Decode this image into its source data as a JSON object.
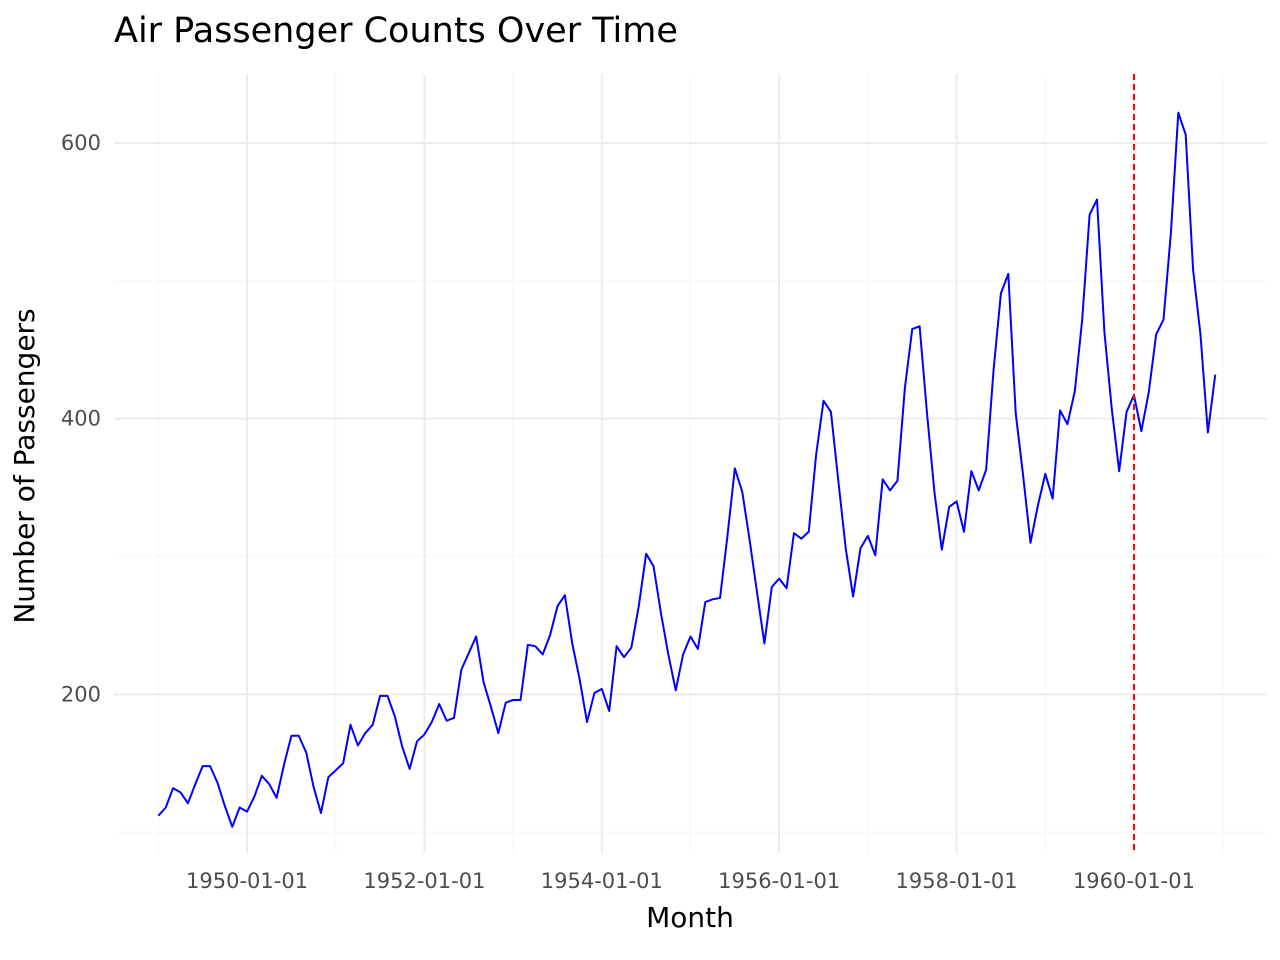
{
  "chart_data": {
    "type": "line",
    "title": "Air Passenger Counts Over Time",
    "xlabel": "Month",
    "ylabel": "Number of Passengers",
    "x_tick_labels": [
      "1950-01-01",
      "1952-01-01",
      "1954-01-01",
      "1956-01-01",
      "1958-01-01",
      "1960-01-01"
    ],
    "y_tick_labels": [
      "200",
      "400",
      "600"
    ],
    "y_ticks": [
      200,
      400,
      600
    ],
    "xlim": [
      "1948-07-01",
      "1961-07-01"
    ],
    "ylim": [
      85,
      650
    ],
    "grid": true,
    "colors": {
      "series": "#0000ff",
      "reference_line": "#ff0000",
      "grid_major": "#ebebeb",
      "grid_minor": "#f7f7f7",
      "tick_text": "#4d4d4d"
    },
    "reference_line": {
      "x": "1960-01-01",
      "style": "dashed"
    },
    "x": [
      "1949-01",
      "1949-02",
      "1949-03",
      "1949-04",
      "1949-05",
      "1949-06",
      "1949-07",
      "1949-08",
      "1949-09",
      "1949-10",
      "1949-11",
      "1949-12",
      "1950-01",
      "1950-02",
      "1950-03",
      "1950-04",
      "1950-05",
      "1950-06",
      "1950-07",
      "1950-08",
      "1950-09",
      "1950-10",
      "1950-11",
      "1950-12",
      "1951-01",
      "1951-02",
      "1951-03",
      "1951-04",
      "1951-05",
      "1951-06",
      "1951-07",
      "1951-08",
      "1951-09",
      "1951-10",
      "1951-11",
      "1951-12",
      "1952-01",
      "1952-02",
      "1952-03",
      "1952-04",
      "1952-05",
      "1952-06",
      "1952-07",
      "1952-08",
      "1952-09",
      "1952-10",
      "1952-11",
      "1952-12",
      "1953-01",
      "1953-02",
      "1953-03",
      "1953-04",
      "1953-05",
      "1953-06",
      "1953-07",
      "1953-08",
      "1953-09",
      "1953-10",
      "1953-11",
      "1953-12",
      "1954-01",
      "1954-02",
      "1954-03",
      "1954-04",
      "1954-05",
      "1954-06",
      "1954-07",
      "1954-08",
      "1954-09",
      "1954-10",
      "1954-11",
      "1954-12",
      "1955-01",
      "1955-02",
      "1955-03",
      "1955-04",
      "1955-05",
      "1955-06",
      "1955-07",
      "1955-08",
      "1955-09",
      "1955-10",
      "1955-11",
      "1955-12",
      "1956-01",
      "1956-02",
      "1956-03",
      "1956-04",
      "1956-05",
      "1956-06",
      "1956-07",
      "1956-08",
      "1956-09",
      "1956-10",
      "1956-11",
      "1956-12",
      "1957-01",
      "1957-02",
      "1957-03",
      "1957-04",
      "1957-05",
      "1957-06",
      "1957-07",
      "1957-08",
      "1957-09",
      "1957-10",
      "1957-11",
      "1957-12",
      "1958-01",
      "1958-02",
      "1958-03",
      "1958-04",
      "1958-05",
      "1958-06",
      "1958-07",
      "1958-08",
      "1958-09",
      "1958-10",
      "1958-11",
      "1958-12",
      "1959-01",
      "1959-02",
      "1959-03",
      "1959-04",
      "1959-05",
      "1959-06",
      "1959-07",
      "1959-08",
      "1959-09",
      "1959-10",
      "1959-11",
      "1959-12",
      "1960-01",
      "1960-02",
      "1960-03",
      "1960-04",
      "1960-05",
      "1960-06",
      "1960-07",
      "1960-08",
      "1960-09",
      "1960-10",
      "1960-11",
      "1960-12"
    ],
    "series": [
      {
        "values": [
          112,
          118,
          132,
          129,
          121,
          135,
          148,
          148,
          136,
          119,
          104,
          118,
          115,
          126,
          141,
          135,
          125,
          149,
          170,
          170,
          158,
          133,
          114,
          140,
          145,
          150,
          178,
          163,
          172,
          178,
          199,
          199,
          184,
          162,
          146,
          166,
          171,
          180,
          193,
          181,
          183,
          218,
          230,
          242,
          209,
          191,
          172,
          194,
          196,
          196,
          236,
          235,
          229,
          243,
          264,
          272,
          237,
          211,
          180,
          201,
          204,
          188,
          235,
          227,
          234,
          264,
          302,
          293,
          259,
          229,
          203,
          229,
          242,
          233,
          267,
          269,
          270,
          315,
          364,
          347,
          312,
          274,
          237,
          278,
          284,
          277,
          317,
          313,
          318,
          374,
          413,
          405,
          355,
          306,
          271,
          306,
          315,
          301,
          356,
          348,
          355,
          422,
          465,
          467,
          404,
          347,
          305,
          336,
          340,
          318,
          362,
          348,
          363,
          435,
          491,
          505,
          404,
          359,
          310,
          337,
          360,
          342,
          406,
          396,
          420,
          472,
          548,
          559,
          463,
          407,
          362,
          405,
          417,
          391,
          419,
          461,
          472,
          535,
          622,
          606,
          508,
          461,
          390,
          432
        ]
      }
    ]
  }
}
